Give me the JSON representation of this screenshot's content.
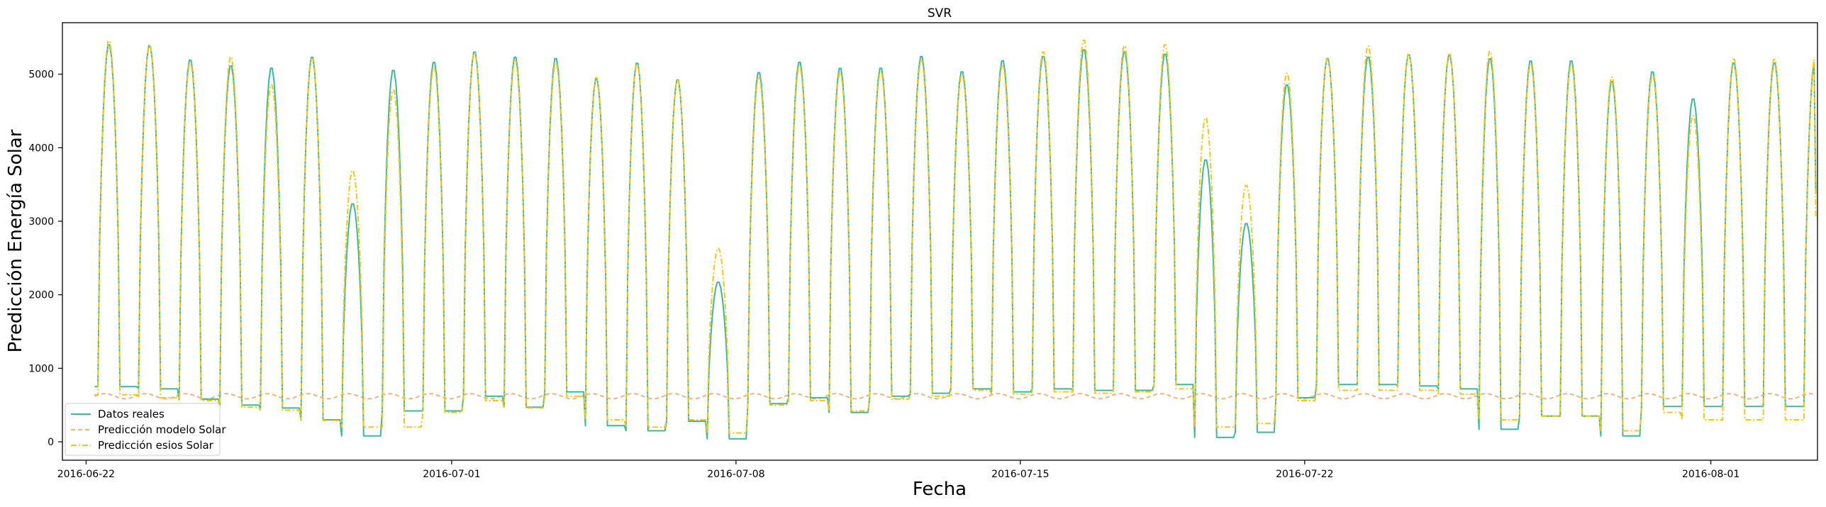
{
  "chart_data": {
    "type": "line",
    "title": "SVR",
    "xlabel": "Fecha",
    "ylabel": "Predicción Energía Solar",
    "x_range": [
      "2016-06-21T10:00",
      "2016-08-03T15:00"
    ],
    "ylim": [
      -250,
      5700
    ],
    "x_ticks": [
      "2016-06-22",
      "2016-07-01",
      "2016-07-08",
      "2016-07-15",
      "2016-07-22",
      "2016-08-01"
    ],
    "y_ticks": [
      0,
      1000,
      2000,
      3000,
      4000,
      5000
    ],
    "grid": false,
    "legend_position": "lower-left",
    "data_start": "2016-06-22T05:00",
    "series": [
      {
        "name": "Datos reales",
        "color": "#3cb99b",
        "dash": "solid",
        "daily_peak": [
          5420,
          5400,
          5210,
          5130,
          5100,
          5250,
          3250,
          5070,
          5180,
          5320,
          5250,
          5230,
          4950,
          5170,
          4940,
          2180,
          5040,
          5180,
          5100,
          5100,
          5260,
          5050,
          5200,
          5260,
          5350,
          5320,
          5290,
          3850,
          2980,
          4870,
          5230,
          5250,
          5280,
          5270,
          5230,
          5200,
          5200,
          4920,
          5050,
          4680,
          5170
        ],
        "night_level": [
          750,
          720,
          580,
          500,
          460,
          300,
          80,
          420,
          420,
          620,
          470,
          680,
          220,
          150,
          280,
          40,
          520,
          600,
          400,
          620,
          660,
          720,
          680,
          720,
          700,
          700,
          780,
          60,
          130,
          600,
          780,
          780,
          760,
          720,
          170,
          350,
          350,
          80,
          480,
          480,
          480
        ],
        "last_value": 3370
      },
      {
        "name": "Predicción modelo Solar",
        "color": "#f2b27d",
        "dash": "dashed",
        "base_level": 620,
        "amplitude": 35
      },
      {
        "name": "Predicción esios Solar",
        "color": "#f5c518",
        "dash": "dashdot",
        "daily_peak": [
          5470,
          5420,
          5170,
          5250,
          4870,
          5230,
          3700,
          4800,
          5100,
          5300,
          5200,
          5170,
          4970,
          5150,
          4950,
          2640,
          4970,
          5120,
          5030,
          5050,
          5200,
          5000,
          5130,
          5320,
          5480,
          5400,
          5420,
          4420,
          3500,
          5030,
          5220,
          5400,
          5290,
          5290,
          5330,
          5150,
          5140,
          4980,
          5000,
          4450,
          5220
        ],
        "night_level": [
          640,
          600,
          560,
          470,
          430,
          290,
          200,
          200,
          400,
          560,
          460,
          620,
          300,
          200,
          300,
          120,
          500,
          560,
          420,
          580,
          620,
          700,
          650,
          680,
          660,
          680,
          720,
          200,
          250,
          560,
          700,
          700,
          700,
          650,
          300,
          350,
          350,
          150,
          400,
          300,
          300
        ],
        "last_value": 3050
      }
    ]
  }
}
